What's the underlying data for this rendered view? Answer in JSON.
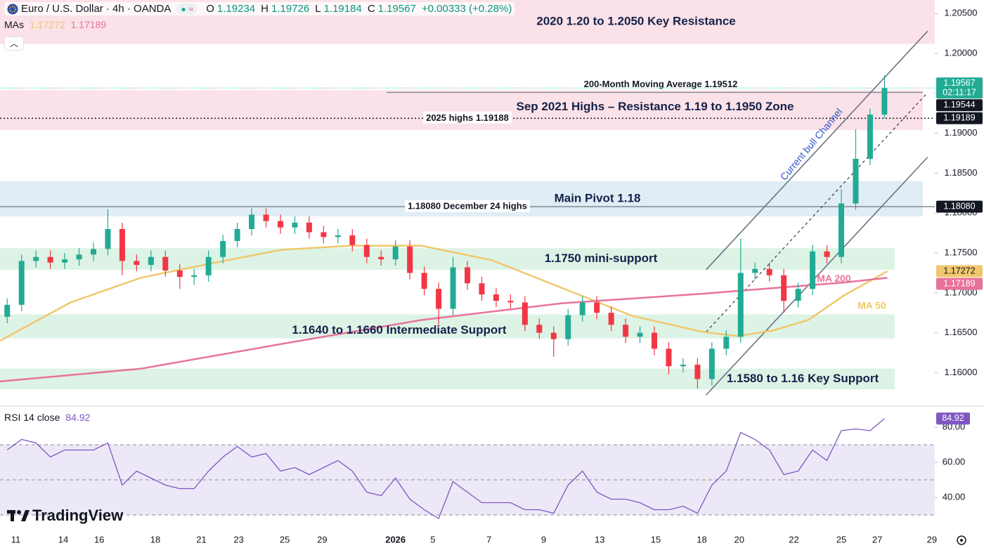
{
  "chart_data": {
    "type": "candlestick",
    "title": "Euro / U.S. Dollar · 4h · OANDA",
    "ohlc_labels": [
      "O",
      "H",
      "L",
      "C"
    ],
    "change": "+0.00333 (+0.28%)",
    "ma_label": "MAs",
    "countdown": "02:11:17",
    "branding": "TradingView",
    "up_color": "#22ab94",
    "down_color": "#f23645",
    "x": [
      0,
      1,
      2,
      3,
      4,
      5,
      6,
      7,
      8,
      9,
      10,
      11,
      12,
      13,
      14,
      15,
      16,
      17,
      18,
      19,
      20,
      21,
      22,
      23,
      24,
      25,
      26,
      27,
      28,
      29,
      30,
      31,
      32,
      33,
      34,
      35,
      36,
      37,
      38,
      39,
      40,
      41,
      42,
      43,
      44,
      45,
      46,
      47,
      48,
      49,
      50,
      51,
      52,
      53,
      54,
      55,
      56,
      57,
      58,
      59,
      60,
      61
    ],
    "open": [
      1.167,
      1.1685,
      1.174,
      1.1745,
      1.1738,
      1.1742,
      1.1748,
      1.1755,
      1.178,
      1.174,
      1.1735,
      1.1745,
      1.1728,
      1.172,
      1.1722,
      1.1745,
      1.1765,
      1.178,
      1.1798,
      1.179,
      1.1782,
      1.1788,
      1.1776,
      1.177,
      1.1772,
      1.176,
      1.1745,
      1.1742,
      1.1758,
      1.1725,
      1.1705,
      1.168,
      1.1732,
      1.1712,
      1.1698,
      1.169,
      1.1688,
      1.166,
      1.165,
      1.1642,
      1.1672,
      1.1688,
      1.1675,
      1.166,
      1.1645,
      1.165,
      1.163,
      1.1608,
      1.161,
      1.1592,
      1.163,
      1.1645,
      1.1725,
      1.173,
      1.1722,
      1.169,
      1.1705,
      1.1752,
      1.1745,
      1.1812,
      1.1868,
      1.19234
    ],
    "high": [
      1.1693,
      1.1748,
      1.1753,
      1.1753,
      1.175,
      1.1756,
      1.1763,
      1.1805,
      1.1788,
      1.1748,
      1.1753,
      1.1753,
      1.1736,
      1.173,
      1.1753,
      1.1773,
      1.1788,
      1.1806,
      1.1806,
      1.1798,
      1.1796,
      1.1796,
      1.1784,
      1.178,
      1.178,
      1.1768,
      1.1753,
      1.1766,
      1.1766,
      1.1733,
      1.1713,
      1.1745,
      1.174,
      1.172,
      1.1706,
      1.1698,
      1.1696,
      1.1668,
      1.1658,
      1.168,
      1.1696,
      1.1696,
      1.1683,
      1.1668,
      1.1658,
      1.1658,
      1.1638,
      1.1618,
      1.1618,
      1.1638,
      1.1653,
      1.1768,
      1.1738,
      1.1738,
      1.173,
      1.1713,
      1.176,
      1.176,
      1.183,
      1.1905,
      1.1931,
      1.19726
    ],
    "low": [
      1.1662,
      1.1677,
      1.1732,
      1.173,
      1.173,
      1.1734,
      1.174,
      1.1747,
      1.1722,
      1.1727,
      1.1727,
      1.172,
      1.1705,
      1.171,
      1.1714,
      1.1737,
      1.1757,
      1.1772,
      1.1782,
      1.1774,
      1.1774,
      1.1768,
      1.1762,
      1.1762,
      1.1752,
      1.1737,
      1.1734,
      1.1734,
      1.1717,
      1.1697,
      1.166,
      1.1672,
      1.1704,
      1.169,
      1.1682,
      1.168,
      1.1652,
      1.1642,
      1.162,
      1.1634,
      1.1664,
      1.1667,
      1.1652,
      1.1637,
      1.1637,
      1.1622,
      1.1598,
      1.16,
      1.158,
      1.1584,
      1.1622,
      1.1637,
      1.1717,
      1.1714,
      1.1675,
      1.1682,
      1.1697,
      1.1737,
      1.1737,
      1.1804,
      1.186,
      1.19184
    ],
    "close": [
      1.1685,
      1.174,
      1.1745,
      1.1738,
      1.1742,
      1.1748,
      1.1755,
      1.178,
      1.174,
      1.1735,
      1.1745,
      1.1728,
      1.172,
      1.1722,
      1.1745,
      1.1765,
      1.178,
      1.1798,
      1.179,
      1.1782,
      1.1788,
      1.1776,
      1.177,
      1.1772,
      1.176,
      1.1745,
      1.1742,
      1.1758,
      1.1725,
      1.1705,
      1.168,
      1.1732,
      1.1712,
      1.1698,
      1.169,
      1.1688,
      1.166,
      1.165,
      1.1642,
      1.1672,
      1.1688,
      1.1675,
      1.166,
      1.1645,
      1.165,
      1.163,
      1.1608,
      1.161,
      1.1592,
      1.163,
      1.1645,
      1.1725,
      1.173,
      1.1722,
      1.169,
      1.1705,
      1.1752,
      1.1745,
      1.1812,
      1.1868,
      1.19234,
      1.19567
    ],
    "xlim": [
      -0.5,
      64.5
    ],
    "xticks": [
      {
        "value": 0.6,
        "label": "11"
      },
      {
        "value": 3.9,
        "label": "14"
      },
      {
        "value": 6.4,
        "label": "16"
      },
      {
        "value": 10.3,
        "label": "18"
      },
      {
        "value": 13.5,
        "label": "21"
      },
      {
        "value": 16.1,
        "label": "23"
      },
      {
        "value": 19.3,
        "label": "25"
      },
      {
        "value": 21.9,
        "label": "29"
      },
      {
        "value": 27,
        "label": "2026"
      },
      {
        "value": 29.6,
        "label": "5"
      },
      {
        "value": 33.5,
        "label": "7"
      },
      {
        "value": 37.3,
        "label": "9"
      },
      {
        "value": 41.2,
        "label": "13"
      },
      {
        "value": 45.1,
        "label": "15"
      },
      {
        "value": 48.3,
        "label": "18"
      },
      {
        "value": 50.9,
        "label": "20"
      },
      {
        "value": 54.7,
        "label": "22"
      },
      {
        "value": 58,
        "label": "25"
      },
      {
        "value": 60.5,
        "label": "27"
      },
      {
        "value": 64.3,
        "label": "29"
      }
    ],
    "ylim": [
      1.1559,
      1.2067
    ],
    "yticks": [
      {
        "value": 1.16,
        "label": "1.16000"
      },
      {
        "value": 1.165,
        "label": "1.16500"
      },
      {
        "value": 1.17,
        "label": "1.17000"
      },
      {
        "value": 1.175,
        "label": "1.17500"
      },
      {
        "value": 1.18,
        "label": "1.18000"
      },
      {
        "value": 1.185,
        "label": "1.18500"
      },
      {
        "value": 1.19,
        "label": "1.19000"
      },
      {
        "value": 1.195,
        "label": "1.19500"
      },
      {
        "value": 1.2,
        "label": "1.20000"
      },
      {
        "value": 1.205,
        "label": "1.20500"
      }
    ],
    "series": [
      {
        "name": "MA 50",
        "color": "#f0c76c",
        "x": [
          -0.5,
          4.4,
          9.3,
          14.2,
          19.1,
          23.9,
          28.8,
          33.7,
          38.6,
          43.5,
          48.4,
          50.8,
          53.3,
          55.7,
          58.2,
          61.2
        ],
        "values": [
          1.164,
          1.1688,
          1.1719,
          1.1737,
          1.1754,
          1.1759,
          1.1759,
          1.1741,
          1.1706,
          1.1671,
          1.1651,
          1.1646,
          1.1653,
          1.1666,
          1.1697,
          1.17272
        ]
      },
      {
        "name": "MA 200",
        "color": "#e8739a",
        "x": [
          -0.5,
          9.3,
          19.1,
          28.8,
          38.6,
          48.4,
          53.3,
          58.2,
          61.2
        ],
        "values": [
          1.1589,
          1.1605,
          1.1636,
          1.1666,
          1.1687,
          1.1699,
          1.1706,
          1.1713,
          1.17189
        ]
      }
    ],
    "zones": [
      {
        "label": "2020 1.20 to 1.2050 Key Resistance",
        "from": 1.2012,
        "to": 1.2067,
        "color": "#fbe1e8"
      },
      {
        "label": "Sep 2021 Highs – Resistance 1.19 to 1.1950 Zone",
        "from": 1.1904,
        "to": 1.1954,
        "color": "#fbe1e8"
      },
      {
        "label": "Main Pivot 1.18",
        "from": 1.1796,
        "to": 1.184,
        "color": "#e1edf5"
      },
      {
        "label": "1.1750 mini-support",
        "from": 1.1729,
        "to": 1.1756,
        "color": "#ddf3e5"
      },
      {
        "label": "1.1640 to 1.1660 Intermediate Support",
        "from": 1.1643,
        "to": 1.1673,
        "color": "#ddf3e5"
      },
      {
        "label": "1.1580 to 1.16 Key Support",
        "from": 1.1579,
        "to": 1.1605,
        "color": "#ddf3e5"
      }
    ],
    "levels": [
      {
        "label": "200-Month Moving Average 1.19512",
        "value": 1.19512,
        "style": "solid"
      },
      {
        "label": "2025 highs 1.19188",
        "value": 1.19188,
        "style": "dotted"
      },
      {
        "label": "1.18080 December 24 highs",
        "value": 1.1808,
        "style": "solid"
      }
    ],
    "price_labels": [
      {
        "value": 1.19544,
        "label": "1.19544"
      },
      {
        "value": 1.19189,
        "label": "1.19189"
      },
      {
        "value": 1.1808,
        "label": "1.18080"
      }
    ],
    "channel": {
      "label": "Current bull Channel",
      "x": [
        48.6,
        64
      ],
      "upper": [
        1.1729,
        1.2028
      ],
      "middle": [
        1.1651,
        1.1951
      ],
      "lower": [
        1.1572,
        1.187
      ]
    },
    "rsi": {
      "label": "RSI 14 close",
      "color": "#7e57c2",
      "values": [
        67,
        73,
        71,
        63,
        67,
        67,
        67,
        71,
        47,
        55,
        51,
        47,
        45,
        45,
        55,
        63,
        69,
        63,
        65,
        55,
        57,
        53,
        57,
        61,
        55,
        43,
        41,
        51,
        39,
        33,
        28,
        49,
        43,
        37,
        37,
        37,
        33,
        33,
        31,
        47,
        55,
        43,
        39,
        39,
        37,
        33,
        33,
        35,
        31,
        47,
        55,
        77,
        73,
        67,
        53,
        55,
        67,
        61,
        78,
        79,
        78,
        84.92
      ],
      "ylim": [
        21.2,
        91.2
      ],
      "yticks": [
        {
          "value": 40,
          "label": "40.00"
        },
        {
          "value": 60,
          "label": "60.00"
        },
        {
          "value": 80,
          "label": "80.00"
        }
      ],
      "levels": [
        70,
        50,
        30
      ]
    }
  }
}
